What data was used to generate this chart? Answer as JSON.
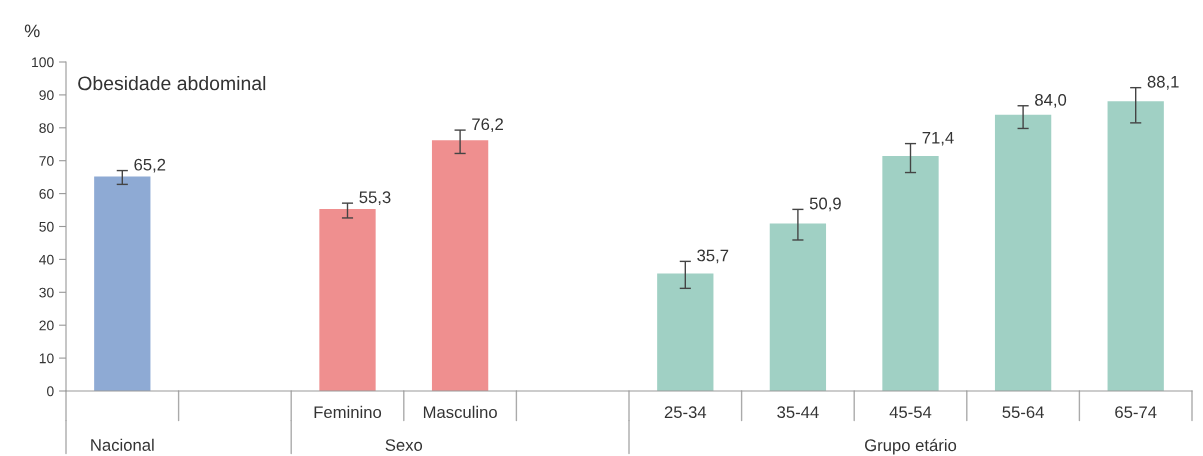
{
  "chart_data": {
    "type": "bar",
    "title": "Obesidade abdominal",
    "ylabel": "%",
    "categories": [
      null,
      null,
      "Feminino",
      "Masculino",
      null,
      "25-34",
      "35-44",
      "45-54",
      "55-64",
      "65-74"
    ],
    "values": [
      65.2,
      null,
      55.3,
      76.2,
      null,
      35.7,
      50.9,
      71.4,
      84.0,
      88.1
    ],
    "value_labels": [
      "65,2",
      null,
      "55,3",
      "76,2",
      null,
      "35,7",
      "50,9",
      "71,4",
      "84,0",
      "88,1"
    ],
    "errors": [
      [
        62.8,
        67.0
      ],
      null,
      [
        52.6,
        57.1
      ],
      [
        72.2,
        79.3
      ],
      null,
      [
        31.2,
        39.4
      ],
      [
        45.9,
        55.2
      ],
      [
        66.4,
        75.2
      ],
      [
        79.8,
        86.7
      ],
      [
        81.5,
        92.2
      ]
    ],
    "colors": [
      "#8eaad4",
      null,
      "#ef8f8f",
      "#ef8f8f",
      null,
      "#a0d0c4",
      "#a0d0c4",
      "#a0d0c4",
      "#a0d0c4",
      "#a0d0c4"
    ],
    "annotations": [
      "Nacional",
      "Sexo",
      "Grupo etário"
    ],
    "ylim": [
      0,
      100
    ],
    "yticks": [
      0,
      10,
      20,
      30,
      40,
      50,
      60,
      70,
      80,
      90,
      100
    ],
    "grid": false,
    "legend": false
  }
}
